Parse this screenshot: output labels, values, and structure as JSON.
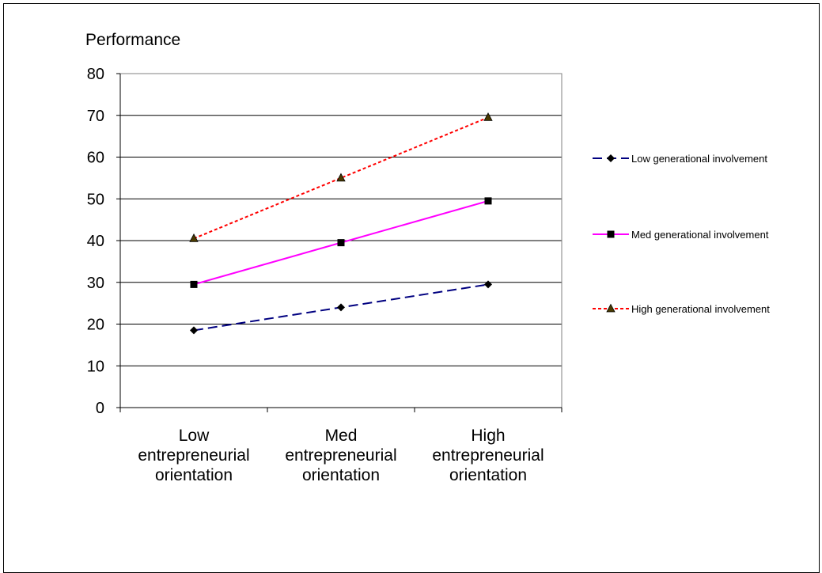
{
  "chart_data": {
    "type": "line",
    "title": "",
    "ylabel": "Performance",
    "xlabel": "",
    "ylim": [
      0,
      80
    ],
    "yticks": [
      0,
      10,
      20,
      30,
      40,
      50,
      60,
      70,
      80
    ],
    "categories": [
      [
        "Low",
        "entrepreneurial",
        "orientation"
      ],
      [
        "Med",
        "entrepreneurial",
        "orientation"
      ],
      [
        "High",
        "entrepreneurial",
        "orientation"
      ]
    ],
    "grid": true,
    "legend_position": "right",
    "series": [
      {
        "name": "Low generational involvement",
        "values": [
          18.5,
          24,
          29.5
        ],
        "color": "#000080",
        "dash": "long-dash",
        "marker": "diamond"
      },
      {
        "name": "Med generational involvement",
        "values": [
          29.5,
          39.5,
          49.5
        ],
        "color": "#ff00ff",
        "dash": "solid",
        "marker": "square"
      },
      {
        "name": "High generational involvement",
        "values": [
          40.5,
          55,
          69.5
        ],
        "color": "#ff0000",
        "dash": "dotted",
        "marker": "triangle"
      }
    ]
  }
}
